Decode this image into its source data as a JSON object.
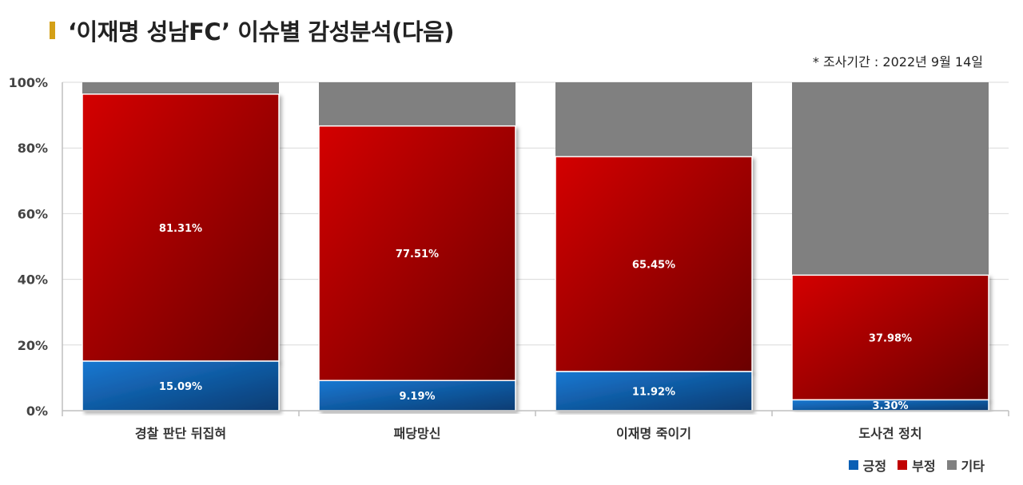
{
  "title": "‘이재명 성남FC’ 이슈별 감성분석(다음)",
  "note": "* 조사기간 : 2022년 9월 14일",
  "colors": {
    "title_marker": "#d4a017",
    "positive": "#0a5fb4",
    "negative": "#c00000",
    "other": "#808080"
  },
  "chart_data": {
    "type": "bar",
    "stacked": true,
    "categories": [
      "경찰 판단 뒤집혀",
      "패당망신",
      "이재명 죽이기",
      "도사견 정치"
    ],
    "series": [
      {
        "name": "긍정",
        "values": [
          15.09,
          9.19,
          11.92,
          3.3
        ],
        "labels": [
          "15.09%",
          "9.19%",
          "11.92%",
          "3.30%"
        ]
      },
      {
        "name": "부정",
        "values": [
          81.31,
          77.51,
          65.45,
          37.98
        ],
        "labels": [
          "81.31%",
          "77.51%",
          "65.45%",
          "37.98%"
        ]
      },
      {
        "name": "기타",
        "values": [
          3.6,
          13.3,
          22.63,
          58.72
        ]
      }
    ],
    "yticks": [
      "0%",
      "20%",
      "40%",
      "60%",
      "80%",
      "100%"
    ],
    "ylim": [
      0,
      100
    ],
    "grid": true,
    "legend": "bottom-right"
  }
}
